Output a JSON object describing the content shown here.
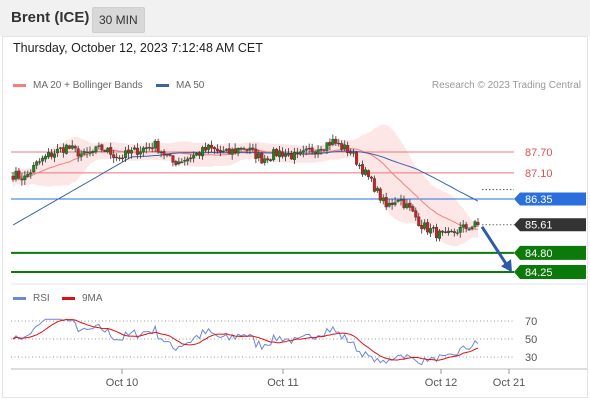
{
  "header": {
    "instrument": "Brent (ICE)",
    "timeframe": "30 MIN"
  },
  "timestamp": "Thursday, October 12, 2023 7:12:48 AM CET",
  "legend": {
    "ma20": "MA 20 + Bollinger Bands",
    "ma50": "MA 50",
    "rsi": "RSI",
    "rsi_ma": "9MA"
  },
  "credit": "Research © 2023 Trading Central",
  "colors": {
    "ma20": "#f08080",
    "band_fill": "#fde6e6",
    "ma50": "#3a63a8",
    "candle_up": "#1a8a1a",
    "candle_down": "#cc2222",
    "support": "#0b7a0b",
    "resistance": "#e87878",
    "pivot": "#2a6fdb",
    "last": "#333333",
    "rsi": "#6a87d8",
    "rsi_ma": "#dd1111"
  },
  "chart_data": [
    {
      "type": "candlestick",
      "title": "Brent (ICE)",
      "timeframe": "30 MIN",
      "x_ticks": [
        "Oct 10",
        "Oct 11",
        "Oct 12",
        "Oct 21"
      ],
      "ylim": [
        84.0,
        88.8
      ],
      "levels": [
        {
          "label": "87.70",
          "value": 87.7,
          "kind": "resistance"
        },
        {
          "label": "87.10",
          "value": 87.1,
          "kind": "resistance"
        },
        {
          "label": "86.35",
          "value": 86.35,
          "kind": "pivot"
        },
        {
          "label": "85.61",
          "value": 85.61,
          "kind": "last"
        },
        {
          "label": "84.80",
          "value": 84.8,
          "kind": "support"
        },
        {
          "label": "84.25",
          "value": 84.25,
          "kind": "support"
        }
      ],
      "close_anchors": [
        [
          0,
          87.05
        ],
        [
          4,
          86.95
        ],
        [
          8,
          87.35
        ],
        [
          12,
          87.6
        ],
        [
          18,
          87.85
        ],
        [
          24,
          87.6
        ],
        [
          30,
          87.8
        ],
        [
          36,
          87.55
        ],
        [
          42,
          87.75
        ],
        [
          48,
          87.9
        ],
        [
          54,
          87.4
        ],
        [
          60,
          87.55
        ],
        [
          66,
          87.8
        ],
        [
          72,
          87.65
        ],
        [
          78,
          87.85
        ],
        [
          84,
          87.5
        ],
        [
          90,
          87.7
        ],
        [
          96,
          87.55
        ],
        [
          102,
          87.8
        ],
        [
          108,
          88.0
        ],
        [
          114,
          87.7
        ],
        [
          118,
          87.2
        ],
        [
          122,
          86.7
        ],
        [
          126,
          86.1
        ],
        [
          130,
          86.4
        ],
        [
          134,
          86.05
        ],
        [
          138,
          85.6
        ],
        [
          142,
          85.4
        ],
        [
          146,
          85.25
        ],
        [
          150,
          85.45
        ],
        [
          154,
          85.55
        ],
        [
          157,
          85.61
        ]
      ],
      "projection": {
        "from": 85.55,
        "to": 84.3
      }
    },
    {
      "type": "line",
      "title": "RSI",
      "series": [
        {
          "name": "RSI"
        },
        {
          "name": "9MA"
        }
      ],
      "levels": [
        70,
        50,
        30
      ],
      "ylim": [
        15,
        80
      ]
    }
  ]
}
